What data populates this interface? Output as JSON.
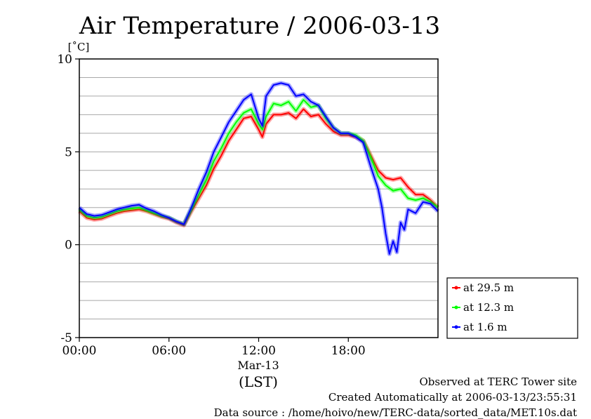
{
  "chart_data": {
    "type": "line",
    "title": "Air Temperature / 2006-03-13",
    "ylabel": "[˚C]",
    "xlabel": "(LST)",
    "date_label": "Mar-13",
    "ylim": [
      -5,
      10
    ],
    "yticks": [
      "10",
      "5",
      "0",
      "-5"
    ],
    "xlim": [
      0,
      24
    ],
    "xticks": [
      "00:00",
      "06:00",
      "12:00",
      "18:00"
    ],
    "grid": true,
    "legend_position": "right",
    "series": [
      {
        "name": "at 29.5 m",
        "color": "#ff0000",
        "x": [
          0,
          0.5,
          1,
          1.5,
          2,
          2.5,
          3,
          3.5,
          4,
          4.5,
          5,
          5.5,
          6,
          6.5,
          7,
          7.5,
          8,
          8.5,
          9,
          9.5,
          10,
          10.5,
          11,
          11.5,
          12,
          12.25,
          12.5,
          13,
          13.5,
          14,
          14.5,
          15,
          15.5,
          16,
          16.5,
          17,
          17.5,
          18,
          18.5,
          19,
          19.5,
          20,
          20.5,
          21,
          21.5,
          22,
          22.5,
          23,
          23.5,
          24
        ],
        "y": [
          1.8,
          1.45,
          1.35,
          1.4,
          1.55,
          1.7,
          1.8,
          1.85,
          1.9,
          1.8,
          1.65,
          1.5,
          1.4,
          1.2,
          1.05,
          1.8,
          2.5,
          3.2,
          4.1,
          4.8,
          5.6,
          6.2,
          6.8,
          6.9,
          6.2,
          5.8,
          6.5,
          7.0,
          7.0,
          7.1,
          6.8,
          7.3,
          6.9,
          7.0,
          6.5,
          6.1,
          5.9,
          5.9,
          5.8,
          5.6,
          4.8,
          4.0,
          3.6,
          3.5,
          3.6,
          3.1,
          2.7,
          2.7,
          2.4,
          2.0
        ]
      },
      {
        "name": "at 12.3 m",
        "color": "#00ff00",
        "x": [
          0,
          0.5,
          1,
          1.5,
          2,
          2.5,
          3,
          3.5,
          4,
          4.5,
          5,
          5.5,
          6,
          6.5,
          7,
          7.5,
          8,
          8.5,
          9,
          9.5,
          10,
          10.5,
          11,
          11.5,
          12,
          12.25,
          12.5,
          13,
          13.5,
          14,
          14.5,
          15,
          15.5,
          16,
          16.5,
          17,
          17.5,
          18,
          18.5,
          19,
          19.5,
          20,
          20.5,
          21,
          21.5,
          22,
          22.5,
          23,
          23.5,
          24
        ],
        "y": [
          1.9,
          1.55,
          1.45,
          1.5,
          1.65,
          1.8,
          1.9,
          1.95,
          2.0,
          1.85,
          1.7,
          1.55,
          1.45,
          1.25,
          1.1,
          1.9,
          2.7,
          3.5,
          4.5,
          5.2,
          6.0,
          6.6,
          7.1,
          7.3,
          6.5,
          6.2,
          6.9,
          7.6,
          7.5,
          7.7,
          7.2,
          7.8,
          7.4,
          7.5,
          6.8,
          6.3,
          6.0,
          6.0,
          5.9,
          5.6,
          4.7,
          3.7,
          3.2,
          2.9,
          3.0,
          2.5,
          2.4,
          2.5,
          2.3,
          2.0
        ]
      },
      {
        "name": "at 1.6 m",
        "color": "#0000ff",
        "x": [
          0,
          0.5,
          1,
          1.5,
          2,
          2.5,
          3,
          3.5,
          4,
          4.5,
          5,
          5.5,
          6,
          6.5,
          7,
          7.5,
          8,
          8.5,
          9,
          9.5,
          10,
          10.5,
          11,
          11.5,
          12,
          12.25,
          12.5,
          13,
          13.5,
          14,
          14.5,
          15,
          15.5,
          16,
          16.5,
          17,
          17.5,
          18,
          18.5,
          19,
          19.5,
          20,
          20.25,
          20.5,
          20.75,
          21,
          21.25,
          21.5,
          21.75,
          22,
          22.5,
          23,
          23.5,
          24
        ],
        "y": [
          2.0,
          1.65,
          1.55,
          1.6,
          1.75,
          1.9,
          2.0,
          2.1,
          2.15,
          1.95,
          1.8,
          1.6,
          1.45,
          1.25,
          1.1,
          2.0,
          3.0,
          3.9,
          5.0,
          5.8,
          6.6,
          7.2,
          7.8,
          8.1,
          6.8,
          6.4,
          8.0,
          8.6,
          8.7,
          8.6,
          8.0,
          8.1,
          7.7,
          7.5,
          6.9,
          6.3,
          6.0,
          6.0,
          5.8,
          5.5,
          4.2,
          3.0,
          2.0,
          0.6,
          -0.5,
          0.2,
          -0.4,
          1.2,
          0.8,
          1.9,
          1.7,
          2.3,
          2.2,
          1.8
        ]
      }
    ]
  },
  "footer": {
    "site": "Observed at TERC Tower site",
    "created": "Created Automatically at 2006-03-13/23:55:31",
    "source": "Data source : /home/hoivo/new/TERC-data/sorted_data/MET.10s.dat"
  }
}
